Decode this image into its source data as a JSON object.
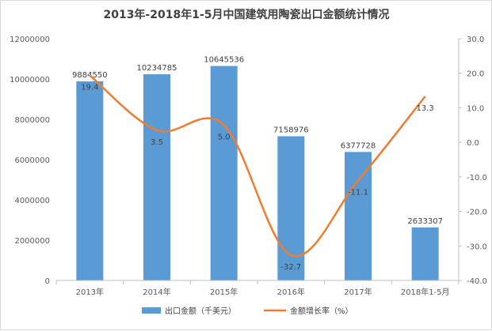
{
  "chart_data": {
    "type": "bar+line",
    "title": "2013年-2018年1-5月中国建筑用陶瓷出口金额统计情况",
    "categories": [
      "2013年",
      "2014年",
      "2015年",
      "2016年",
      "2017年",
      "2018年1-5月"
    ],
    "series": [
      {
        "name": "出口金额（千美元）",
        "type": "bar",
        "axis": "left",
        "color": "#5b9bd5",
        "values": [
          9884550,
          10234785,
          10645536,
          7158976,
          6377728,
          2633307
        ],
        "labels": [
          "9884550",
          "10234785",
          "10645536",
          "7158976",
          "6377728",
          "2633307"
        ]
      },
      {
        "name": "金额增长率（%）",
        "type": "line",
        "axis": "right",
        "color": "#ed7d31",
        "values": [
          19.4,
          3.5,
          5.0,
          -32.7,
          -11.1,
          13.3
        ],
        "labels": [
          "19.4",
          "3.5",
          "5.0",
          "-32.7",
          "-11.1",
          "13.3"
        ]
      }
    ],
    "y_left": {
      "ylim": [
        0,
        12000000
      ],
      "ticks": [
        0,
        2000000,
        4000000,
        6000000,
        8000000,
        10000000,
        12000000
      ],
      "tick_labels": [
        "0",
        "2000000",
        "4000000",
        "6000000",
        "8000000",
        "10000000",
        "12000000"
      ]
    },
    "y_right": {
      "ylim": [
        -40,
        30
      ],
      "ticks": [
        30,
        20,
        10,
        0,
        -10,
        -20,
        -30,
        -40
      ],
      "tick_labels": [
        "30.0",
        "20.0",
        "10.0",
        "0.0",
        "-10.0",
        "-20.0",
        "-30.0",
        "-40.0"
      ]
    },
    "grid": false,
    "legend_position": "bottom"
  }
}
